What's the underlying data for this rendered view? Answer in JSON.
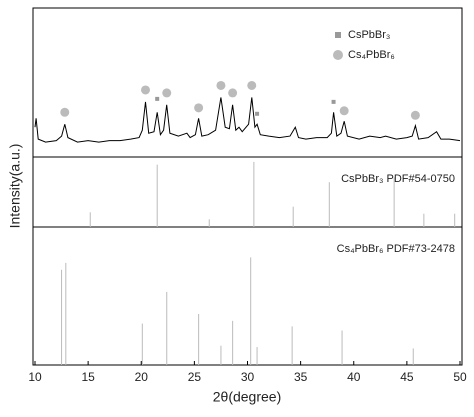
{
  "chart_data": [
    {
      "type": "line",
      "ylabel": "Intensity(a.u.)",
      "xlim": [
        10,
        50
      ],
      "ylim": [
        0,
        100
      ],
      "pattern": {
        "color": "#000000",
        "x": [
          10.0,
          10.1,
          10.3,
          11,
          12,
          12.5,
          12.8,
          13.1,
          14,
          15,
          16,
          17,
          18,
          19,
          19.8,
          20.1,
          20.4,
          20.7,
          21.2,
          21.5,
          21.8,
          22.1,
          22.4,
          22.7,
          23.5,
          24.3,
          24.6,
          25.1,
          25.4,
          25.7,
          26.3,
          27,
          27.5,
          27.9,
          28.3,
          28.6,
          28.9,
          29.2,
          29.5,
          30.1,
          30.4,
          30.7,
          30.9,
          31.2,
          32,
          33,
          34,
          34.5,
          34.8,
          35.5,
          36.5,
          37.5,
          37.9,
          38.1,
          38.4,
          38.8,
          39.1,
          39.4,
          40.5,
          41.5,
          42.5,
          43,
          44,
          45,
          45.5,
          45.8,
          46.1,
          47,
          47.8,
          48.2,
          49,
          50
        ],
        "values": [
          20,
          26,
          12,
          10,
          11,
          14,
          22,
          13,
          10,
          11,
          10,
          11,
          11,
          12,
          13,
          18,
          37,
          16,
          17,
          30,
          15,
          18,
          35,
          16,
          14,
          16,
          13,
          15,
          26,
          14,
          15,
          18,
          40,
          20,
          19,
          35,
          18,
          20,
          17,
          22,
          40,
          20,
          22,
          15,
          14,
          13,
          14,
          20,
          13,
          12,
          13,
          13,
          16,
          30,
          14,
          16,
          24,
          14,
          12,
          14,
          13,
          14,
          12,
          13,
          14,
          21,
          12,
          13,
          17,
          12,
          12,
          11
        ]
      },
      "series": [
        {
          "name": "CsPbBr₃",
          "color": "#999999",
          "marker": "square",
          "x": [
            21.5,
            30.9,
            38.1
          ],
          "values": [
            39,
            29,
            37
          ]
        },
        {
          "name": "Cs₄PbBr₆",
          "color": "#bbbbbb",
          "marker": "circle",
          "x": [
            12.8,
            20.4,
            22.4,
            25.4,
            27.5,
            28.6,
            30.4,
            39.1,
            45.8
          ],
          "values": [
            30,
            45,
            43,
            33,
            48,
            43,
            48,
            31,
            28
          ]
        }
      ]
    },
    {
      "type": "stem",
      "label": "CsPbBr₃ PDF#54-0750",
      "color": "#bbbbbb",
      "xlim": [
        10,
        50
      ],
      "ylim": [
        0,
        100
      ],
      "x": [
        15.2,
        21.5,
        26.4,
        30.6,
        34.3,
        37.7,
        43.8,
        46.6,
        49.5
      ],
      "values": [
        21,
        89,
        11,
        93,
        29,
        64,
        71,
        19,
        19
      ]
    },
    {
      "type": "stem",
      "label": "Cs₄PbBr₆ PDF#73-2478",
      "color": "#bbbbbb",
      "xlim": [
        10,
        50
      ],
      "ylim": [
        0,
        100
      ],
      "x": [
        12.5,
        12.9,
        20.1,
        22.4,
        25.4,
        27.5,
        28.6,
        30.3,
        30.9,
        34.2,
        38.9,
        45.6
      ],
      "values": [
        69,
        74,
        30,
        53,
        37,
        14,
        32,
        78,
        13,
        28,
        25,
        12
      ],
      "xlabel": "2θ(degree)",
      "xticks": [
        10,
        15,
        20,
        25,
        30,
        35,
        40,
        45,
        50
      ]
    }
  ]
}
